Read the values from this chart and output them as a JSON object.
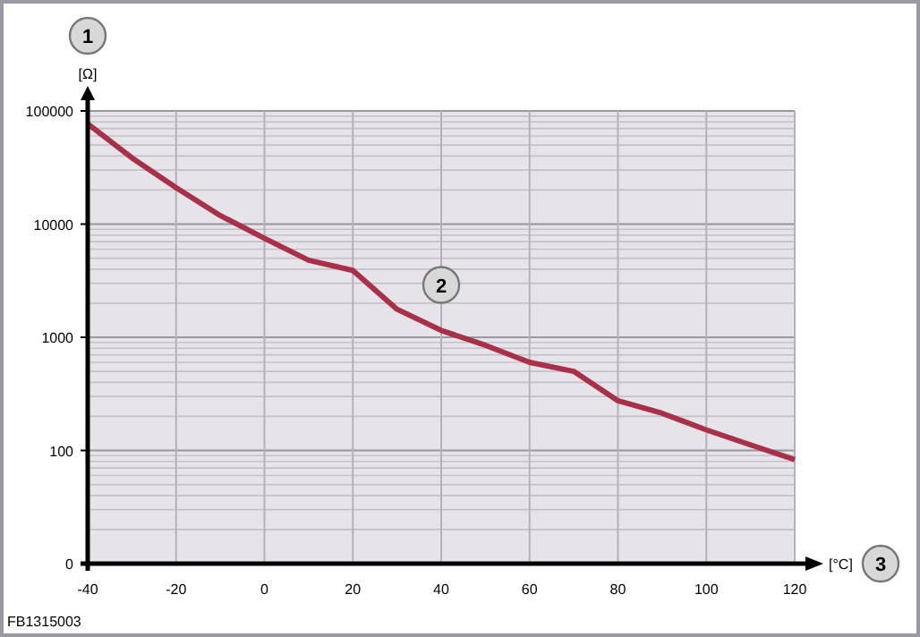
{
  "chart_data": {
    "type": "line",
    "xlabel": "[°C]",
    "ylabel": "[Ω]",
    "x": [
      -40,
      -30,
      -20,
      -10,
      0,
      10,
      20,
      30,
      40,
      50,
      60,
      70,
      80,
      90,
      100,
      110,
      120
    ],
    "series": [
      {
        "color": "#a8304a",
        "values": [
          77000,
          38500,
          21000,
          11900,
          7500,
          4800,
          3900,
          1770,
          1150,
          850,
          600,
          500,
          275,
          213,
          152,
          112,
          83
        ]
      }
    ],
    "xlim": [
      -40,
      120
    ],
    "xticks": [
      -40,
      -20,
      0,
      20,
      40,
      60,
      80,
      100,
      120
    ],
    "ylim": [
      0,
      100000
    ],
    "yticks": [
      0,
      100,
      1000,
      10000,
      100000
    ],
    "log": "y",
    "grid": true,
    "marker": "none",
    "line_style": "solid",
    "annotations": [
      "1",
      {
        "text": "2",
        "x": 40,
        "y": 2900
      },
      "3",
      "FB1315003"
    ]
  }
}
